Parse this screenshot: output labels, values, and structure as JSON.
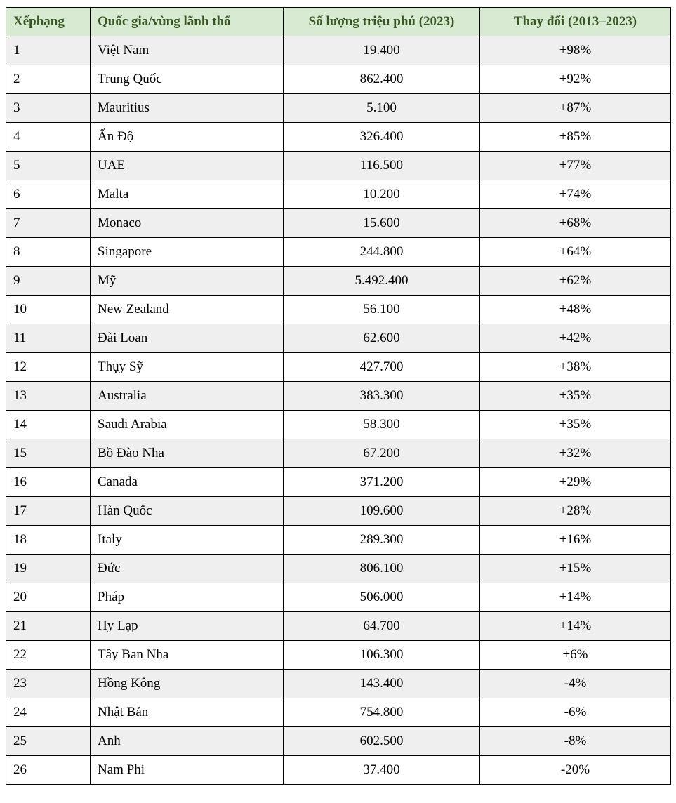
{
  "chart_data": {
    "type": "table",
    "title": "",
    "columns": [
      {
        "key": "rank",
        "label": "Xếphạng",
        "align": "left"
      },
      {
        "key": "country",
        "label": "Quốc gia/vùng lãnh thổ",
        "align": "left"
      },
      {
        "key": "count",
        "label": "Số lượng triệu phú (2023)",
        "align": "center"
      },
      {
        "key": "change",
        "label": "Thay đổi (2013–2023)",
        "align": "center"
      }
    ],
    "rows": [
      {
        "rank": "1",
        "country": "Việt Nam",
        "count": "19.400",
        "change": "+98%"
      },
      {
        "rank": "2",
        "country": "Trung Quốc",
        "count": "862.400",
        "change": "+92%"
      },
      {
        "rank": "3",
        "country": "Mauritius",
        "count": "5.100",
        "change": "+87%"
      },
      {
        "rank": "4",
        "country": "Ấn Độ",
        "count": "326.400",
        "change": "+85%"
      },
      {
        "rank": "5",
        "country": "UAE",
        "count": "116.500",
        "change": "+77%"
      },
      {
        "rank": "6",
        "country": "Malta",
        "count": "10.200",
        "change": "+74%"
      },
      {
        "rank": "7",
        "country": "Monaco",
        "count": "15.600",
        "change": "+68%"
      },
      {
        "rank": "8",
        "country": "Singapore",
        "count": "244.800",
        "change": "+64%"
      },
      {
        "rank": "9",
        "country": "Mỹ",
        "count": "5.492.400",
        "change": "+62%"
      },
      {
        "rank": "10",
        "country": "New Zealand",
        "count": "56.100",
        "change": "+48%"
      },
      {
        "rank": "11",
        "country": "Đài Loan",
        "count": "62.600",
        "change": "+42%"
      },
      {
        "rank": "12",
        "country": "Thụy Sỹ",
        "count": "427.700",
        "change": "+38%"
      },
      {
        "rank": "13",
        "country": "Australia",
        "count": "383.300",
        "change": "+35%"
      },
      {
        "rank": "14",
        "country": "Saudi Arabia",
        "count": "58.300",
        "change": "+35%"
      },
      {
        "rank": "15",
        "country": "Bồ Đào Nha",
        "count": "67.200",
        "change": "+32%"
      },
      {
        "rank": "16",
        "country": "Canada",
        "count": "371.200",
        "change": "+29%"
      },
      {
        "rank": "17",
        "country": "Hàn Quốc",
        "count": "109.600",
        "change": "+28%"
      },
      {
        "rank": "18",
        "country": "Italy",
        "count": "289.300",
        "change": "+16%"
      },
      {
        "rank": "19",
        "country": "Đức",
        "count": "806.100",
        "change": "+15%"
      },
      {
        "rank": "20",
        "country": "Pháp",
        "count": "506.000",
        "change": "+14%"
      },
      {
        "rank": "21",
        "country": "Hy Lạp",
        "count": "64.700",
        "change": "+14%"
      },
      {
        "rank": "22",
        "country": "Tây Ban Nha",
        "count": "106.300",
        "change": "+6%"
      },
      {
        "rank": "23",
        "country": "Hồng Kông",
        "count": "143.400",
        "change": "-4%"
      },
      {
        "rank": "24",
        "country": "Nhật Bản",
        "count": "754.800",
        "change": "-6%"
      },
      {
        "rank": "25",
        "country": "Anh",
        "count": "602.500",
        "change": "-8%"
      },
      {
        "rank": "26",
        "country": "Nam Phi",
        "count": "37.400",
        "change": "-20%"
      }
    ]
  },
  "colors": {
    "header_bg": "#d9ead3",
    "header_text": "#375623",
    "row_stripe": "#efefef",
    "row_plain": "#ffffff",
    "border": "#000000",
    "body_text": "#000000"
  }
}
